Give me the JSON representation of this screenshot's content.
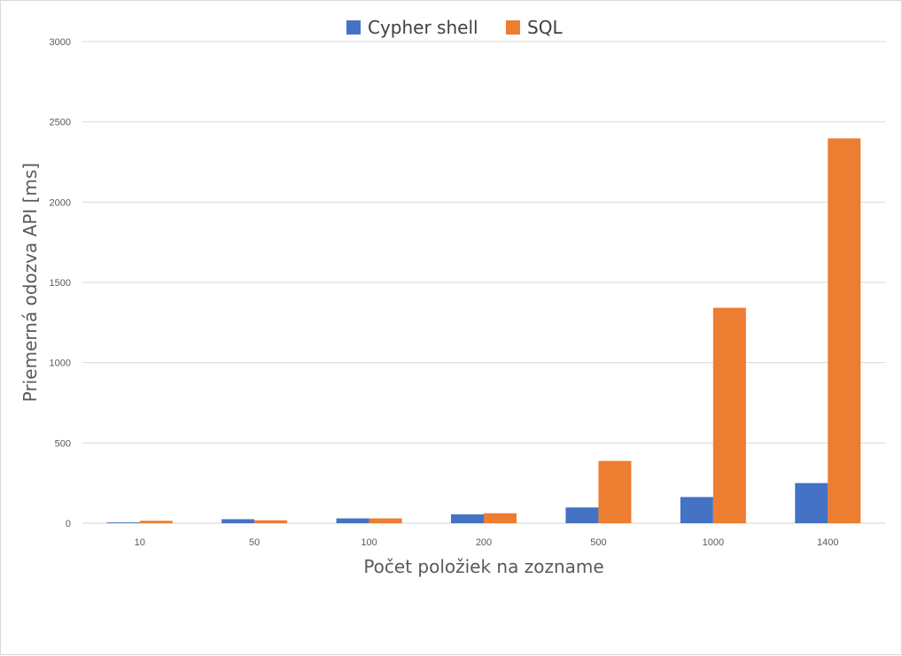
{
  "chart_data": {
    "type": "bar",
    "categories": [
      "10",
      "50",
      "100",
      "200",
      "500",
      "1000",
      "1400"
    ],
    "series": [
      {
        "name": "Cypher shell",
        "color": "#4472c4",
        "values": [
          5,
          25,
          30,
          55,
          98,
          163,
          250
        ]
      },
      {
        "name": "SQL",
        "color": "#ed7d31",
        "values": [
          15,
          18,
          30,
          62,
          388,
          1342,
          2397
        ]
      }
    ],
    "xlabel": "Počet položiek na zozname",
    "ylabel": "Priemerná odozva API [ms]",
    "ylim": [
      0,
      3000
    ],
    "yticks": [
      "0",
      "500",
      "1000",
      "1500",
      "2000",
      "2500",
      "3000"
    ],
    "grid": true,
    "legend_position": "top-center"
  }
}
